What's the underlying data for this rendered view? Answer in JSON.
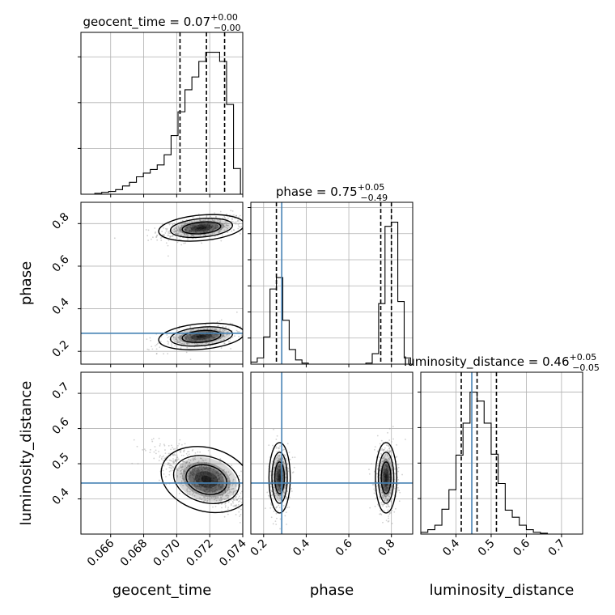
{
  "chart_data": {
    "type": "corner",
    "parameters": [
      "geocent_time",
      "phase",
      "luminosity_distance"
    ],
    "truths": {
      "phase": 0.285,
      "luminosity_distance": 0.445
    },
    "colors": {
      "truth": "#4682b4",
      "hist": "#000000",
      "grid": "#b0b0b0",
      "samples": "#9a9a9a"
    },
    "grid": true,
    "titles": [
      {
        "param": "geocent_time",
        "text": "geocent_time = 0.07",
        "plus": "+0.00",
        "minus": "−0.00"
      },
      {
        "param": "phase",
        "text": "phase = 0.75",
        "plus": "+0.05",
        "minus": "−0.49"
      },
      {
        "param": "luminosity_distance",
        "text": "luminosity_distance = 0.46",
        "plus": "+0.05",
        "minus": "−0.05"
      }
    ],
    "axes": {
      "geocent_time": {
        "range": [
          0.0642,
          0.074
        ],
        "ticks": [
          0.066,
          0.068,
          0.07,
          0.072,
          0.074
        ],
        "tick_labels": [
          "0.066",
          "0.068",
          "0.070",
          "0.072",
          "0.074"
        ],
        "label": "geocent_time"
      },
      "phase": {
        "range": [
          0.14,
          0.9
        ],
        "ticks": [
          0.2,
          0.4,
          0.6,
          0.8
        ],
        "tick_labels": [
          "0.2",
          "0.4",
          "0.6",
          "0.8"
        ],
        "label": "phase"
      },
      "luminosity_distance": {
        "range": [
          0.3,
          0.76
        ],
        "ticks": [
          0.4,
          0.5,
          0.6,
          0.7
        ],
        "tick_labels": [
          "0.4",
          "0.5",
          "0.6",
          "0.7"
        ],
        "label": "luminosity_distance"
      }
    },
    "marginals": {
      "geocent_time": {
        "bin_edges": [
          0.0642,
          0.06462,
          0.06504,
          0.06546,
          0.06588,
          0.0663,
          0.06672,
          0.06714,
          0.06756,
          0.06798,
          0.0684,
          0.06882,
          0.06924,
          0.06966,
          0.07008,
          0.0705,
          0.07092,
          0.07134,
          0.07176,
          0.07218,
          0.0726,
          0.07302,
          0.07344,
          0.07386
        ],
        "counts": [
          0,
          0,
          1,
          2,
          3,
          5,
          9,
          13,
          19,
          23,
          27,
          32,
          43,
          64,
          90,
          114,
          128,
          145,
          155,
          155,
          145,
          98,
          28
        ],
        "quantiles": [
          0.0702,
          0.0718,
          0.0729
        ]
      },
      "phase": {
        "bin_edges": [
          0.14,
          0.17,
          0.2,
          0.23,
          0.26,
          0.29,
          0.32,
          0.35,
          0.38,
          0.41,
          0.44,
          0.47,
          0.5,
          0.53,
          0.56,
          0.59,
          0.62,
          0.65,
          0.68,
          0.71,
          0.74,
          0.77,
          0.8,
          0.83,
          0.86,
          0.89
        ],
        "counts": [
          2,
          6,
          26,
          72,
          83,
          42,
          14,
          4,
          1,
          0,
          0,
          0,
          0,
          0,
          0,
          0,
          0,
          0,
          1,
          10,
          58,
          132,
          136,
          60,
          6
        ],
        "quantiles": [
          0.26,
          0.75,
          0.8
        ]
      },
      "luminosity_distance": {
        "bin_edges": [
          0.3,
          0.32,
          0.34,
          0.36,
          0.38,
          0.4,
          0.42,
          0.44,
          0.46,
          0.48,
          0.5,
          0.52,
          0.54,
          0.56,
          0.58,
          0.6,
          0.62,
          0.64,
          0.66,
          0.68,
          0.7,
          0.72,
          0.74,
          0.76
        ],
        "counts": [
          2,
          5,
          10,
          28,
          50,
          89,
          125,
          160,
          150,
          125,
          90,
          57,
          27,
          19,
          10,
          5,
          2,
          1,
          0,
          0,
          0,
          0,
          0
        ],
        "quantiles": [
          0.415,
          0.46,
          0.515
        ]
      }
    },
    "pairs": [
      {
        "x": "geocent_time",
        "y": "phase",
        "modes": [
          {
            "center": [
              0.0715,
              0.78
            ],
            "sigma": [
              0.0013,
              0.03
            ],
            "weight": 0.6,
            "corr": 0.5
          },
          {
            "center": [
              0.0715,
              0.27
            ],
            "sigma": [
              0.0013,
              0.03
            ],
            "weight": 0.4,
            "corr": 0.5
          }
        ]
      },
      {
        "x": "geocent_time",
        "y": "luminosity_distance",
        "modes": [
          {
            "center": [
              0.0718,
              0.455
            ],
            "sigma": [
              0.0014,
              0.045
            ],
            "weight": 1.0,
            "corr": -0.75
          }
        ]
      },
      {
        "x": "phase",
        "y": "luminosity_distance",
        "modes": [
          {
            "center": [
              0.275,
              0.46
            ],
            "sigma": [
              0.025,
              0.05
            ],
            "weight": 0.4,
            "corr": 0.0
          },
          {
            "center": [
              0.775,
              0.46
            ],
            "sigma": [
              0.025,
              0.05
            ],
            "weight": 0.6,
            "corr": 0.0
          }
        ]
      }
    ]
  }
}
